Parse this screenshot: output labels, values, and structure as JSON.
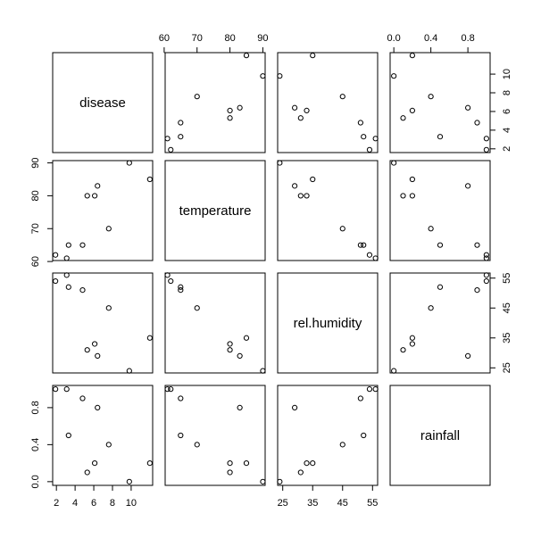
{
  "chart_data": {
    "type": "scatter",
    "variables": [
      "disease",
      "temperature",
      "rel.humidity",
      "rainfall"
    ],
    "observations": {
      "disease": [
        1.9,
        3.1,
        3.3,
        4.8,
        5.3,
        6.1,
        6.4,
        7.6,
        9.8,
        12.0
      ],
      "temperature": [
        62,
        61,
        65,
        65,
        80,
        80,
        83,
        70,
        90,
        85
      ],
      "rel.humidity": [
        54,
        56,
        52,
        51,
        31,
        33,
        29,
        45,
        24,
        35
      ],
      "rainfall": [
        1.0,
        1.0,
        0.5,
        0.9,
        0.1,
        0.2,
        0.8,
        0.4,
        0.0,
        0.2
      ]
    },
    "axis_ranges": {
      "disease": [
        1.6,
        12.3
      ],
      "temperature": [
        60.3,
        90.7
      ],
      "rel.humidity": [
        23.3,
        56.7
      ],
      "rainfall": [
        -0.04,
        1.04
      ]
    },
    "ticks": {
      "disease": [
        2,
        4,
        6,
        8,
        10
      ],
      "temperature": [
        60,
        70,
        80,
        90
      ],
      "rel.humidity": [
        25,
        35,
        45,
        55
      ],
      "rainfall": [
        0.0,
        0.4,
        0.8
      ]
    },
    "tick_labels": {
      "disease": [
        "2",
        "4",
        "6",
        "8",
        "10"
      ],
      "temperature": [
        "60",
        "70",
        "80",
        "90"
      ],
      "rel.humidity": [
        "25",
        "35",
        "45",
        "55"
      ],
      "rainfall": [
        "0.0",
        "0.4",
        "0.8"
      ]
    },
    "grid": false,
    "legend": "none"
  }
}
